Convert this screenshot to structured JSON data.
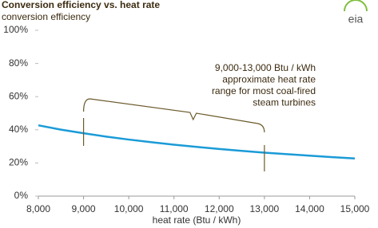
{
  "chart_data": {
    "type": "line",
    "title": "Conversion efficiency vs. heat rate",
    "subtitle": "conversion efficiency",
    "x_label": "heat rate (Btu / kWh)",
    "logo": "eia",
    "x": [
      8000,
      8500,
      9000,
      9500,
      10000,
      10500,
      11000,
      11500,
      12000,
      12500,
      13000,
      13500,
      14000,
      14500,
      15000
    ],
    "series": [
      {
        "name": "conversion efficiency",
        "color": "#1a9bd7",
        "values": [
          42.7,
          40.1,
          37.9,
          35.9,
          34.1,
          32.5,
          31.0,
          29.7,
          28.4,
          27.3,
          26.2,
          25.3,
          24.4,
          23.5,
          22.7
        ]
      }
    ],
    "xlim": [
      8000,
      15000
    ],
    "xticks": [
      {
        "value": 8000,
        "label": "8,000"
      },
      {
        "value": 9000,
        "label": "9,000"
      },
      {
        "value": 10000,
        "label": "10,000"
      },
      {
        "value": 11000,
        "label": "11,000"
      },
      {
        "value": 12000,
        "label": "12,000"
      },
      {
        "value": 13000,
        "label": "13,000"
      },
      {
        "value": 14000,
        "label": "14,000"
      },
      {
        "value": 15000,
        "label": "15,000"
      }
    ],
    "ylim": [
      0,
      100
    ],
    "yticks": [
      {
        "value": 0,
        "label": "0%"
      },
      {
        "value": 20,
        "label": "20%"
      },
      {
        "value": 40,
        "label": "40%"
      },
      {
        "value": 60,
        "label": "60%"
      },
      {
        "value": 80,
        "label": "80%"
      },
      {
        "value": 100,
        "label": "100%"
      }
    ],
    "annotation": {
      "lines": [
        "9,000-13,000  Btu / kWh",
        "approximate heat rate",
        "range for most coal-fired",
        "steam turbines"
      ],
      "x_range": [
        9000,
        13000
      ],
      "color": "#6b5a2a"
    }
  }
}
